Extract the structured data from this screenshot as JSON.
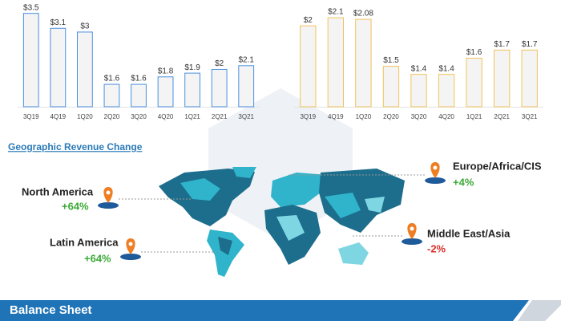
{
  "chart_data": [
    {
      "type": "bar",
      "categories": [
        "3Q19",
        "4Q19",
        "1Q20",
        "2Q20",
        "3Q20",
        "4Q20",
        "1Q21",
        "2Q21",
        "3Q21"
      ],
      "values": [
        3.5,
        3.1,
        3,
        1.6,
        1.6,
        1.8,
        1.9,
        2,
        2.1
      ],
      "value_labels": [
        "$3.5",
        "$3.1",
        "$3",
        "$1.6",
        "$1.6",
        "$1.8",
        "$1.9",
        "$2",
        "$2.1"
      ],
      "color": "#4a90e2",
      "ylim": [
        1,
        3.6
      ]
    },
    {
      "type": "bar",
      "categories": [
        "3Q19",
        "4Q19",
        "1Q20",
        "2Q20",
        "3Q20",
        "4Q20",
        "1Q21",
        "2Q21",
        "3Q21"
      ],
      "values": [
        2,
        2.1,
        2.08,
        1.5,
        1.4,
        1.4,
        1.6,
        1.7,
        1.7
      ],
      "value_labels": [
        "$2",
        "$2.1",
        "$2.08",
        "$1.5",
        "$1.4",
        "$1.4",
        "$1.6",
        "$1.7",
        "$1.7"
      ],
      "color": "#f0c35a",
      "ylim": [
        1,
        2.2
      ]
    }
  ],
  "geographic": {
    "title": "Geographic Revenue Change",
    "regions": [
      {
        "name": "North America",
        "change": "+64%"
      },
      {
        "name": "Latin America",
        "change": "+64%"
      },
      {
        "name": "Europe/Africa/CIS",
        "change": "+4%"
      },
      {
        "name": "Middle East/Asia",
        "change": "-2%"
      }
    ]
  },
  "balance_sheet": {
    "title": "Balance Sheet"
  }
}
